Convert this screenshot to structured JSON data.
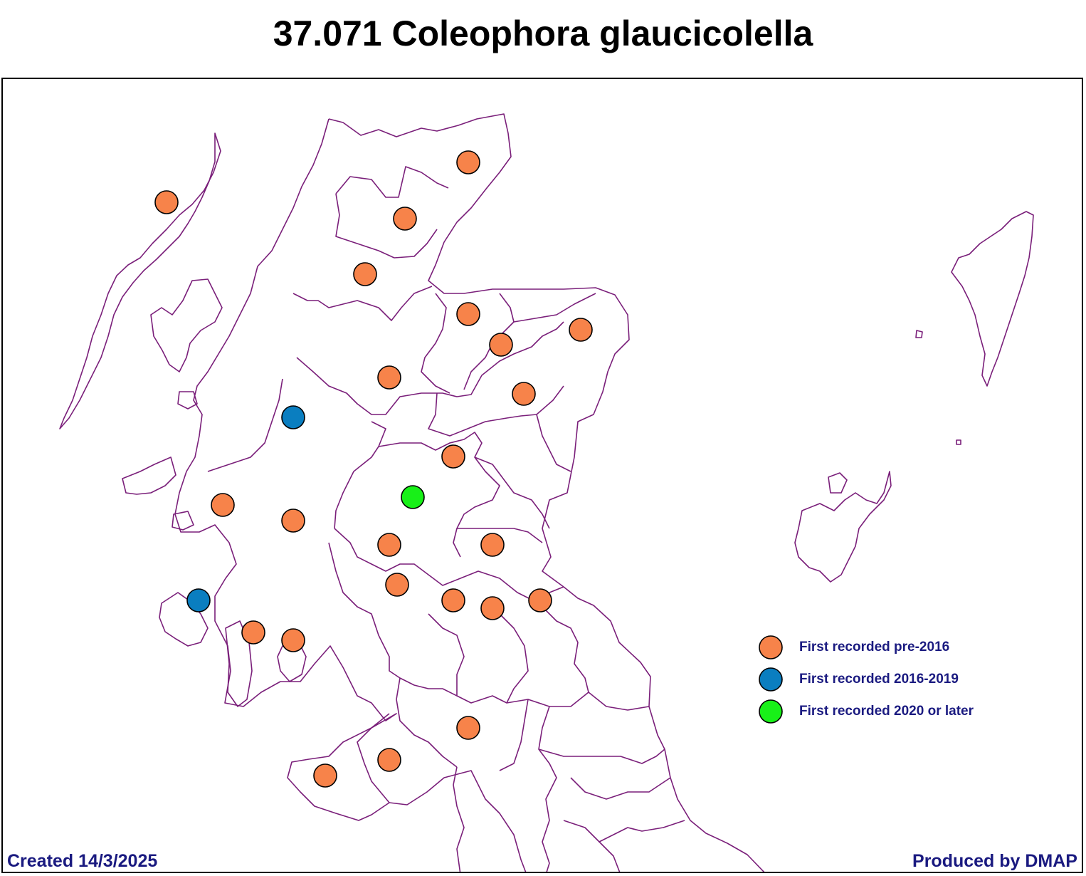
{
  "title": "37.071 Coleophora glaucicolella",
  "footer": {
    "created": "Created 14/3/2025",
    "produced": "Produced by DMAP"
  },
  "colors": {
    "boundary": "#7a1f7a",
    "pre2016": "#f7834a",
    "y2016_2019": "#0a7ec0",
    "y2020_later": "#18f018",
    "text": "#1a1a80"
  },
  "legend": [
    {
      "label": "First recorded pre-2016",
      "category": "pre2016"
    },
    {
      "label": "First recorded 2016-2019",
      "category": "y2016_2019"
    },
    {
      "label": "First recorded 2020 or later",
      "category": "y2020_later"
    }
  ],
  "records": [
    {
      "category": "pre2016"
    },
    {
      "category": "pre2016"
    },
    {
      "category": "pre2016"
    },
    {
      "category": "pre2016"
    },
    {
      "category": "pre2016"
    },
    {
      "category": "pre2016"
    },
    {
      "category": "pre2016"
    },
    {
      "category": "pre2016"
    },
    {
      "category": "pre2016"
    },
    {
      "category": "y2016_2019"
    },
    {
      "category": "pre2016"
    },
    {
      "category": "y2020_later"
    },
    {
      "category": "pre2016"
    },
    {
      "category": "pre2016"
    },
    {
      "category": "pre2016"
    },
    {
      "category": "pre2016"
    },
    {
      "category": "pre2016"
    },
    {
      "category": "pre2016"
    },
    {
      "category": "pre2016"
    },
    {
      "category": "pre2016"
    },
    {
      "category": "y2016_2019"
    },
    {
      "category": "pre2016"
    },
    {
      "category": "pre2016"
    },
    {
      "category": "pre2016"
    },
    {
      "category": "pre2016"
    },
    {
      "category": "pre2016"
    },
    {
      "category": "pre2016"
    }
  ]
}
